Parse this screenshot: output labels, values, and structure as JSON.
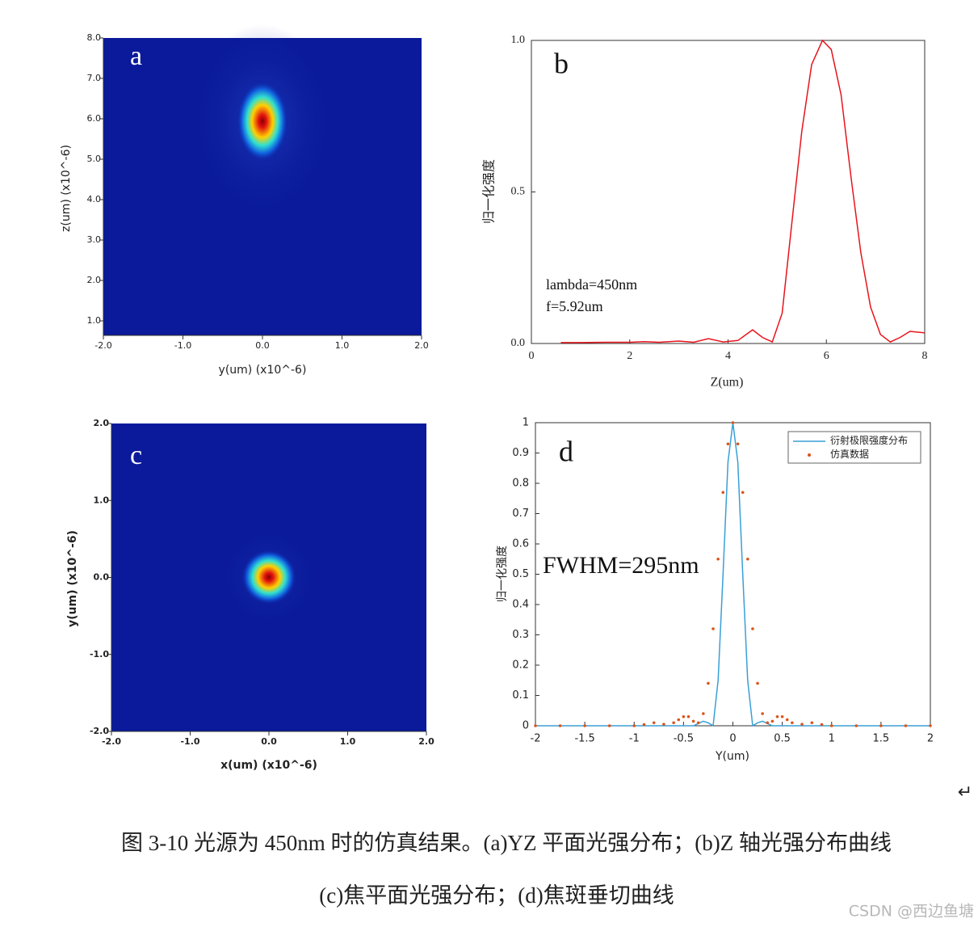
{
  "chart_data": [
    {
      "type": "heatmap",
      "annotations": [
        "a"
      ],
      "xlabel": "y(um) (x10^-6)",
      "ylabel": "z(um) (x10^-6)",
      "xlim": [
        -2,
        2
      ],
      "ylim": [
        0.64,
        8
      ],
      "xticks": [
        {
          "value": -2,
          "label": "-2.0"
        },
        {
          "value": -1,
          "label": "-1.0"
        },
        {
          "value": 0,
          "label": "0.0"
        },
        {
          "value": 1,
          "label": "1.0"
        },
        {
          "value": 2,
          "label": "2.0"
        }
      ],
      "yticks": [
        {
          "value": 1,
          "label": "1.0"
        },
        {
          "value": 2,
          "label": "2.0"
        },
        {
          "value": 3,
          "label": "3.0"
        },
        {
          "value": 4,
          "label": "4.0"
        },
        {
          "value": 5,
          "label": "5.0"
        },
        {
          "value": 6,
          "label": "6.0"
        },
        {
          "value": 7,
          "label": "7.0"
        },
        {
          "value": 8,
          "label": "8.0"
        }
      ]
    },
    {
      "type": "line",
      "annotations": [
        "b",
        "lambda=450nm",
        "f=5.92um"
      ],
      "xlabel": "Z(um)",
      "ylabel": "归一化强度",
      "xlim": [
        0,
        8
      ],
      "ylim": [
        0,
        1
      ],
      "xticks": [
        0,
        2,
        4,
        6,
        8
      ],
      "yticks": [
        {
          "value": 0,
          "label": "0.0"
        },
        {
          "value": 0.5,
          "label": "0.5"
        },
        {
          "value": 1,
          "label": "1.0"
        }
      ],
      "series": [
        {
          "name": null,
          "color": "#e8141c",
          "style": "line",
          "x": [
            0.6,
            1,
            1.5,
            2,
            2.3,
            2.6,
            3,
            3.3,
            3.6,
            3.9,
            4.2,
            4.5,
            4.7,
            4.9,
            5.1,
            5.3,
            5.5,
            5.7,
            5.92,
            6.1,
            6.3,
            6.5,
            6.7,
            6.9,
            7.1,
            7.3,
            7.5,
            7.7,
            8
          ],
          "values": [
            0.003,
            0.003,
            0.004,
            0.004,
            0.006,
            0.004,
            0.008,
            0.004,
            0.016,
            0.005,
            0.01,
            0.045,
            0.02,
            0.005,
            0.1,
            0.4,
            0.7,
            0.92,
            1.0,
            0.97,
            0.82,
            0.55,
            0.3,
            0.12,
            0.03,
            0.005,
            0.02,
            0.04,
            0.035
          ]
        }
      ]
    },
    {
      "type": "heatmap",
      "annotations": [
        "c"
      ],
      "xlabel": "x(um) (x10^-6)",
      "ylabel": "y(um) (x10^-6)",
      "xlim": [
        -2,
        2
      ],
      "ylim": [
        -2,
        2
      ],
      "xticks": [
        {
          "value": -2,
          "label": "-2.0"
        },
        {
          "value": -1,
          "label": "-1.0"
        },
        {
          "value": 0,
          "label": "0.0"
        },
        {
          "value": 1,
          "label": "1.0"
        },
        {
          "value": 2,
          "label": "2.0"
        }
      ],
      "yticks": [
        {
          "value": -2,
          "label": "-2.0"
        },
        {
          "value": -1,
          "label": "-1.0"
        },
        {
          "value": 0,
          "label": "0.0"
        },
        {
          "value": 1,
          "label": "1.0"
        },
        {
          "value": 2,
          "label": "2.0"
        }
      ]
    },
    {
      "type": "line",
      "annotations": [
        "d",
        "FWHM=295nm"
      ],
      "xlabel": "Y(um)",
      "ylabel": "归一化强度",
      "xlim": [
        -2,
        2
      ],
      "ylim": [
        0,
        1
      ],
      "xticks": [
        -2,
        -1.5,
        -1,
        -0.5,
        0,
        0.5,
        1,
        1.5,
        2
      ],
      "yticks": [
        0,
        0.1,
        0.2,
        0.3,
        0.4,
        0.5,
        0.6,
        0.7,
        0.8,
        0.9,
        1
      ],
      "legend": "upper right",
      "series": [
        {
          "name": "衍射极限强度分布",
          "color": "#3a9fd6",
          "style": "line",
          "x": [
            -2,
            -0.4,
            -0.3,
            -0.25,
            -0.2,
            -0.15,
            -0.1,
            -0.05,
            0,
            0.05,
            0.1,
            0.15,
            0.2,
            0.25,
            0.3,
            0.4,
            2
          ],
          "values": [
            0,
            0,
            0.015,
            0.01,
            0,
            0.15,
            0.5,
            0.87,
            1,
            0.87,
            0.5,
            0.15,
            0,
            0.01,
            0.015,
            0,
            0
          ]
        },
        {
          "name": "仿真数据",
          "color": "#d9541a",
          "style": "dots",
          "x": [
            -2,
            -1.75,
            -1.5,
            -1.25,
            -1,
            -0.9,
            -0.8,
            -0.7,
            -0.6,
            -0.55,
            -0.5,
            -0.45,
            -0.4,
            -0.35,
            -0.3,
            -0.25,
            -0.2,
            -0.15,
            -0.1,
            -0.05,
            0,
            0.05,
            0.1,
            0.15,
            0.2,
            0.25,
            0.3,
            0.35,
            0.4,
            0.45,
            0.5,
            0.55,
            0.6,
            0.7,
            0.8,
            0.9,
            1,
            1.25,
            1.5,
            1.75,
            2
          ],
          "values": [
            0,
            0,
            0,
            0,
            0,
            0.004,
            0.01,
            0.005,
            0.01,
            0.02,
            0.03,
            0.03,
            0.015,
            0.01,
            0.04,
            0.14,
            0.32,
            0.55,
            0.77,
            0.93,
            1,
            0.93,
            0.77,
            0.55,
            0.32,
            0.14,
            0.04,
            0.01,
            0.015,
            0.03,
            0.03,
            0.02,
            0.01,
            0.005,
            0.01,
            0.004,
            0,
            0,
            0,
            0,
            0
          ]
        }
      ]
    }
  ],
  "caption": [
    "图 3-10 光源为 450nm 时的仿真结果。(a)YZ 平面光强分布；(b)Z 轴光强分布曲线",
    "(c)焦平面光强分布；(d)焦斑垂切曲线"
  ],
  "watermark": "CSDN @西边鱼塘"
}
